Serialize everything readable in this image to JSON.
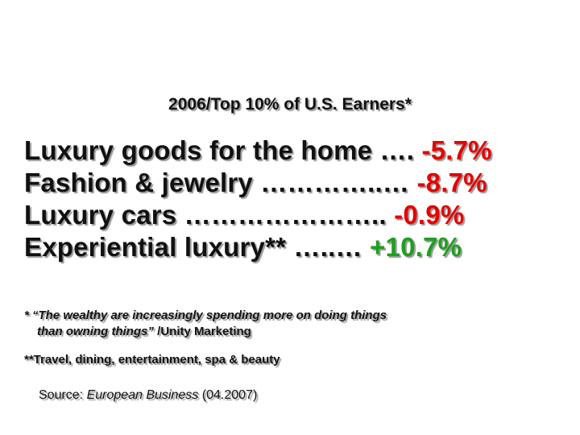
{
  "title": "2006/Top 10% of U.S. Earners*",
  "items": [
    {
      "label": "Luxury goods for the home ….",
      "value": "-5.7%",
      "color": "#e60000"
    },
    {
      "label": "Fashion & jewelry …………..…",
      "value": "-8.7%",
      "color": "#e60000"
    },
    {
      "label": "Luxury cars …………………..",
      "value": "-0.9%",
      "color": "#e60000"
    },
    {
      "label": "Experiential luxury** …..…",
      "value": "+10.7%",
      "color": "#1f9e1f"
    }
  ],
  "footnotes": {
    "quote_line1": "* “The wealthy are increasingly spending more on doing things",
    "quote_line2": "than owning things”",
    "attribution": " /Unity Marketing",
    "experiential": "**Travel, dining, entertainment, spa & beauty"
  },
  "source": {
    "prefix": "Source: ",
    "publication": "European Business",
    "date": " (04.2007)"
  }
}
